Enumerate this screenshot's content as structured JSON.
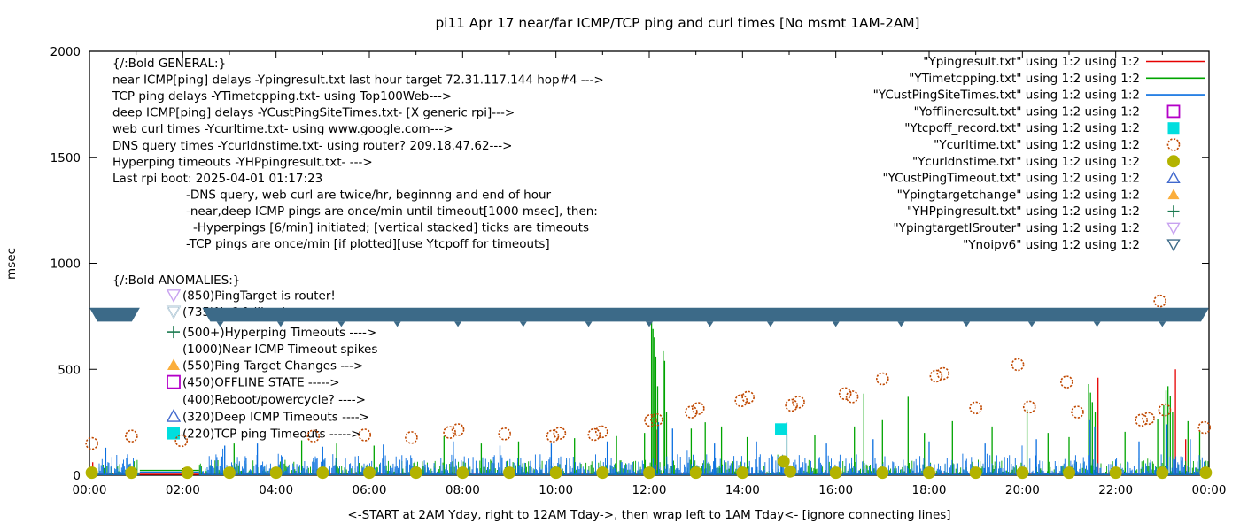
{
  "chart_data": {
    "type": "line+scatter",
    "title": "pi11 Apr 17  near/far ICMP/TCP ping and curl times [No msmt 1AM-2AM]",
    "xlabel": "<-START at 2AM Yday, right to 12AM Tday->, then wrap left to 1AM Tday<- [ignore connecting lines]",
    "ylabel": "msec",
    "xlim_hours": [
      0,
      24
    ],
    "ylim": [
      0,
      2000
    ],
    "xticks": {
      "labels": [
        "00:00",
        "02:00",
        "04:00",
        "06:00",
        "08:00",
        "10:00",
        "12:00",
        "14:00",
        "16:00",
        "18:00",
        "20:00",
        "22:00",
        "00:00"
      ],
      "major_every_hours": 2,
      "minor_every_hours": 1
    },
    "yticks": [
      0,
      500,
      1000,
      1500,
      2000
    ],
    "grid": false,
    "legend_position": "top-right",
    "no_measurement_gap_hours": [
      1.08,
      2.35
    ],
    "series": [
      {
        "name": "\"Ypingresult.txt\" using 1:2",
        "key": "near-icmp-ping",
        "color": "#e60000",
        "style": "line",
        "baseline_msec": 4,
        "spikes": [
          [
            0.07,
            62
          ],
          [
            12.17,
            215
          ],
          [
            14.93,
            85
          ],
          [
            21.62,
            460
          ],
          [
            23.28,
            500
          ],
          [
            23.5,
            170
          ]
        ]
      },
      {
        "name": "\"YTimetcpping.txt\" using 1:2",
        "key": "tcp-ping",
        "color": "#00a400",
        "style": "impulse-noise",
        "noise": {
          "base": 4,
          "amp": 70,
          "pow": 2.8,
          "seed": 101
        },
        "gap_line_msec": 23,
        "spikes": [
          [
            3.1,
            150
          ],
          [
            4.55,
            165
          ],
          [
            5.3,
            150
          ],
          [
            6.1,
            140
          ],
          [
            7.6,
            185
          ],
          [
            8.4,
            150
          ],
          [
            9.2,
            160
          ],
          [
            10.4,
            175
          ],
          [
            11.3,
            185
          ],
          [
            11.9,
            200
          ],
          [
            12.05,
            725
          ],
          [
            12.08,
            690
          ],
          [
            12.11,
            650
          ],
          [
            12.14,
            560
          ],
          [
            12.18,
            420
          ],
          [
            12.3,
            585
          ],
          [
            12.33,
            540
          ],
          [
            12.37,
            300
          ],
          [
            12.9,
            220
          ],
          [
            13.2,
            250
          ],
          [
            13.55,
            230
          ],
          [
            14.1,
            180
          ],
          [
            14.95,
            195
          ],
          [
            15.55,
            190
          ],
          [
            16.4,
            230
          ],
          [
            16.6,
            385
          ],
          [
            17.0,
            260
          ],
          [
            17.55,
            370
          ],
          [
            17.9,
            200
          ],
          [
            18.5,
            255
          ],
          [
            19.35,
            230
          ],
          [
            20.1,
            310
          ],
          [
            20.55,
            200
          ],
          [
            21.0,
            180
          ],
          [
            21.42,
            430
          ],
          [
            21.46,
            390
          ],
          [
            21.5,
            345
          ],
          [
            21.56,
            300
          ],
          [
            22.2,
            205
          ],
          [
            22.9,
            265
          ],
          [
            23.03,
            330
          ],
          [
            23.08,
            400
          ],
          [
            23.12,
            420
          ],
          [
            23.17,
            375
          ],
          [
            23.22,
            300
          ],
          [
            23.55,
            255
          ],
          [
            23.8,
            210
          ]
        ]
      },
      {
        "name": "\"YCustPingSiteTimes.txt\" using 1:2",
        "key": "deep-icmp-ping",
        "color": "#0a6fe0",
        "style": "impulse-noise",
        "noise": {
          "base": 5,
          "amp": 95,
          "pow": 2.4,
          "seed": 202
        },
        "gap_line_msec": 15,
        "spikes": [
          [
            0.35,
            130
          ],
          [
            2.9,
            140
          ],
          [
            3.6,
            150
          ],
          [
            5.0,
            135
          ],
          [
            6.3,
            145
          ],
          [
            7.8,
            160
          ],
          [
            8.8,
            140
          ],
          [
            9.9,
            150
          ],
          [
            11.1,
            160
          ],
          [
            12.2,
            250
          ],
          [
            12.5,
            220
          ],
          [
            13.4,
            150
          ],
          [
            14.3,
            160
          ],
          [
            14.95,
            250
          ],
          [
            15.8,
            150
          ],
          [
            16.8,
            170
          ],
          [
            18.0,
            160
          ],
          [
            19.2,
            150
          ],
          [
            20.3,
            170
          ],
          [
            21.45,
            260
          ],
          [
            21.55,
            230
          ],
          [
            22.5,
            160
          ],
          [
            23.1,
            240
          ],
          [
            23.6,
            170
          ]
        ]
      },
      {
        "name": "\"Yofflineresult.txt\" using 1:2",
        "key": "offline-state",
        "color": "#b400c8",
        "marker": "square-open",
        "points": []
      },
      {
        "name": "\"Ytcpoff_record.txt\" using 1:2",
        "key": "tcp-ping-timeout",
        "color": "#00dede",
        "marker": "square-fill",
        "points": [
          [
            14.82,
            218
          ]
        ]
      },
      {
        "name": "\"Ycurltime.txt\" using 1:2",
        "key": "web-curl-time",
        "color": "#c04800",
        "marker": "circle-open",
        "points": [
          [
            0.05,
            150
          ],
          [
            0.9,
            185
          ],
          [
            1.97,
            163
          ],
          [
            4.8,
            185
          ],
          [
            5.9,
            190
          ],
          [
            6.9,
            178
          ],
          [
            7.72,
            202
          ],
          [
            7.9,
            215
          ],
          [
            8.9,
            195
          ],
          [
            9.93,
            185
          ],
          [
            10.08,
            198
          ],
          [
            10.82,
            192
          ],
          [
            10.98,
            205
          ],
          [
            12.03,
            258
          ],
          [
            12.16,
            262
          ],
          [
            12.9,
            298
          ],
          [
            13.05,
            315
          ],
          [
            13.97,
            352
          ],
          [
            14.12,
            368
          ],
          [
            15.05,
            330
          ],
          [
            15.2,
            345
          ],
          [
            16.2,
            385
          ],
          [
            16.35,
            370
          ],
          [
            17.0,
            455
          ],
          [
            18.15,
            468
          ],
          [
            18.3,
            480
          ],
          [
            19.0,
            318
          ],
          [
            19.9,
            522
          ],
          [
            20.15,
            322
          ],
          [
            20.95,
            440
          ],
          [
            21.18,
            298
          ],
          [
            22.55,
            260
          ],
          [
            22.7,
            268
          ],
          [
            22.95,
            822
          ],
          [
            23.05,
            308
          ],
          [
            23.9,
            225
          ]
        ]
      },
      {
        "name": "\"Ycurldnstime.txt\" using 1:2",
        "key": "dns-query-time",
        "color": "#b3b300",
        "marker": "circle-fill",
        "points": [
          [
            0.05,
            12
          ],
          [
            0.9,
            12
          ],
          [
            2.1,
            12
          ],
          [
            3,
            12
          ],
          [
            4,
            12
          ],
          [
            5,
            12
          ],
          [
            6,
            12
          ],
          [
            7,
            12
          ],
          [
            8,
            12
          ],
          [
            9,
            12
          ],
          [
            10,
            12
          ],
          [
            11,
            12
          ],
          [
            12,
            12
          ],
          [
            13,
            12
          ],
          [
            14,
            12
          ],
          [
            14.88,
            65
          ],
          [
            15.02,
            18
          ],
          [
            16,
            12
          ],
          [
            17,
            12
          ],
          [
            18,
            12
          ],
          [
            19,
            12
          ],
          [
            20,
            12
          ],
          [
            21,
            12
          ],
          [
            22,
            12
          ],
          [
            23,
            12
          ],
          [
            23.93,
            12
          ]
        ]
      },
      {
        "name": "\"YCustPingTimeout.txt\" using 1:2",
        "key": "deep-icmp-timeout",
        "color": "#4169cd",
        "marker": "tri-up-open",
        "points": []
      },
      {
        "name": "\"Ypingtargetchange\" using 1:2",
        "key": "ping-target-change",
        "color": "#fbae3c",
        "marker": "tri-up-fill",
        "points": []
      },
      {
        "name": "\"YHPpingresult.txt\" using 1:2",
        "key": "hyperping-timeout",
        "color": "#1a7a50",
        "marker": "plus",
        "points": []
      },
      {
        "name": "\"YpingtargetISrouter\" using 1:2",
        "key": "pingtarget-is-router",
        "color": "#c8a2f0",
        "marker": "tri-down-open",
        "points": []
      },
      {
        "name": "\"Ynoipv6\" using 1:2",
        "key": "no-ipv6",
        "color": "#3c6a88",
        "marker": "tri-down-open",
        "band": {
          "v_low": 725,
          "v_high": 790,
          "segments_hours": [
            [
              0,
              1.08
            ],
            [
              2.42,
              24
            ]
          ],
          "tip_hours": [
            2.8,
            4.1,
            5.4,
            6.6,
            7.9,
            9.3,
            10.7,
            12.0,
            13.3,
            14.6,
            16.0,
            17.4,
            18.8,
            20.2,
            21.6,
            23.0
          ]
        }
      }
    ]
  },
  "annotations": {
    "general": [
      {
        "x": 127,
        "text": "{/:Bold GENERAL:}"
      },
      {
        "x": 127,
        "text": "near ICMP[ping] delays -Ypingresult.txt last hour target 72.31.117.144 hop#4 --->"
      },
      {
        "x": 127,
        "text": "TCP ping delays -YTimetcpping.txt- using Top100Web--->"
      },
      {
        "x": 127,
        "text": "deep ICMP[ping] delays -YCustPingSiteTimes.txt- [X generic rpi]--->"
      },
      {
        "x": 127,
        "text": "web curl times -Ycurltime.txt- using www.google.com--->"
      },
      {
        "x": 127,
        "text": "DNS query times -Ycurldnstime.txt- using router? 209.18.47.62--->"
      },
      {
        "x": 127,
        "text": "Hyperping timeouts -YHPpingresult.txt- --->"
      },
      {
        "x": 127,
        "text": "Last rpi boot: 2025-04-01 01:17:23"
      },
      {
        "x": 210,
        "text": "-DNS query, web curl are twice/hr, beginnng and end of hour"
      },
      {
        "x": 210,
        "text": "-near,deep ICMP pings are once/min until timeout[1000 msec], then:"
      },
      {
        "x": 218,
        "text": "-Hyperpings [6/min] initiated; [vertical stacked] ticks are timeouts"
      },
      {
        "x": 210,
        "text": "-TCP pings are once/min [if plotted][use Ytcpoff for timeouts]"
      }
    ],
    "anomalies_header": {
      "x": 127,
      "v": 922,
      "text": "{/:Bold ANOMALIES:}"
    },
    "anomalies": [
      {
        "v": 850,
        "marker": "tri-down-open",
        "color": "#c8a2f0",
        "text": "(850)PingTarget is router!"
      },
      {
        "v": 772,
        "marker": "tri-down-open",
        "color": "#3c6a88",
        "text": "(735)No6 fallback",
        "hidden_by_band": true
      },
      {
        "v": 676,
        "marker": "plus",
        "color": "#1a7a50",
        "text": "(500+)Hyperping Timeouts ---->"
      },
      {
        "v": 597,
        "marker": null,
        "color": null,
        "text": "(1000)Near ICMP Timeout spikes"
      },
      {
        "v": 520,
        "marker": "tri-up-fill",
        "color": "#fbae3c",
        "text": "(550)Ping Target Changes --->"
      },
      {
        "v": 440,
        "marker": "square-open",
        "color": "#b400c8",
        "text": "(450)OFFLINE STATE ----->"
      },
      {
        "v": 360,
        "marker": null,
        "color": null,
        "text": "(400)Reboot/powercycle? ---->"
      },
      {
        "v": 278,
        "marker": "tri-up-open",
        "color": "#4169cd",
        "text": "(320)Deep ICMP Timeouts ---->"
      },
      {
        "v": 198,
        "marker": "square-fill",
        "color": "#00dede",
        "text": "(220)TCP ping Timeouts ----->"
      }
    ]
  },
  "legend_suffix": "using 1:2"
}
